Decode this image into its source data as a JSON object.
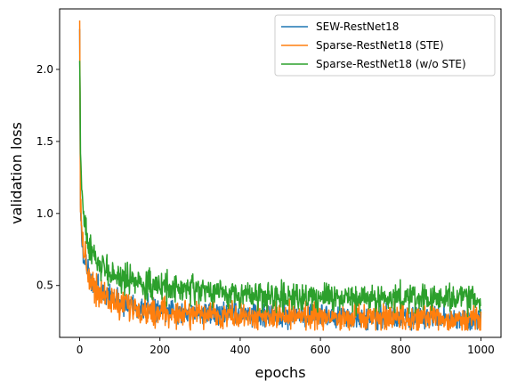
{
  "chart_data": {
    "type": "line",
    "xlabel": "epochs",
    "ylabel": "validation loss",
    "xlim": [
      -50,
      1050
    ],
    "ylim": [
      0.14,
      2.42
    ],
    "xticks": [
      0,
      200,
      400,
      600,
      800,
      1000
    ],
    "xtick_labels": [
      "0",
      "200",
      "400",
      "600",
      "800",
      "1000"
    ],
    "yticks": [
      0.5,
      1.0,
      1.5,
      2.0
    ],
    "ytick_labels": [
      "0.5",
      "1.0",
      "1.5",
      "2.0"
    ],
    "grid": false,
    "legend_position": "top-right",
    "series": [
      {
        "name": "SEW-RestNet18",
        "color": "#1f77b4",
        "noise": 0.045,
        "x": [
          0,
          2,
          5,
          10,
          20,
          30,
          50,
          80,
          120,
          160,
          200,
          300,
          400,
          500,
          600,
          700,
          800,
          900,
          1000
        ],
        "y": [
          2.28,
          1.05,
          0.82,
          0.72,
          0.6,
          0.53,
          0.46,
          0.41,
          0.37,
          0.35,
          0.33,
          0.31,
          0.3,
          0.29,
          0.285,
          0.28,
          0.275,
          0.27,
          0.27
        ]
      },
      {
        "name": "Sparse-RestNet18 (STE)",
        "color": "#ff7f0e",
        "noise": 0.055,
        "x": [
          0,
          2,
          5,
          10,
          20,
          30,
          50,
          80,
          120,
          160,
          200,
          300,
          400,
          500,
          600,
          700,
          800,
          900,
          1000
        ],
        "y": [
          2.34,
          1.1,
          0.88,
          0.75,
          0.6,
          0.52,
          0.45,
          0.39,
          0.35,
          0.33,
          0.31,
          0.3,
          0.29,
          0.285,
          0.28,
          0.275,
          0.27,
          0.265,
          0.26
        ]
      },
      {
        "name": "Sparse-RestNet18 (w/o STE)",
        "color": "#2ca02c",
        "noise": 0.05,
        "x": [
          0,
          2,
          5,
          10,
          20,
          30,
          50,
          80,
          120,
          160,
          200,
          300,
          400,
          500,
          600,
          700,
          800,
          900,
          1000
        ],
        "y": [
          2.06,
          1.5,
          1.2,
          0.95,
          0.8,
          0.72,
          0.64,
          0.58,
          0.54,
          0.51,
          0.49,
          0.46,
          0.44,
          0.43,
          0.42,
          0.415,
          0.41,
          0.405,
          0.4
        ]
      }
    ]
  }
}
